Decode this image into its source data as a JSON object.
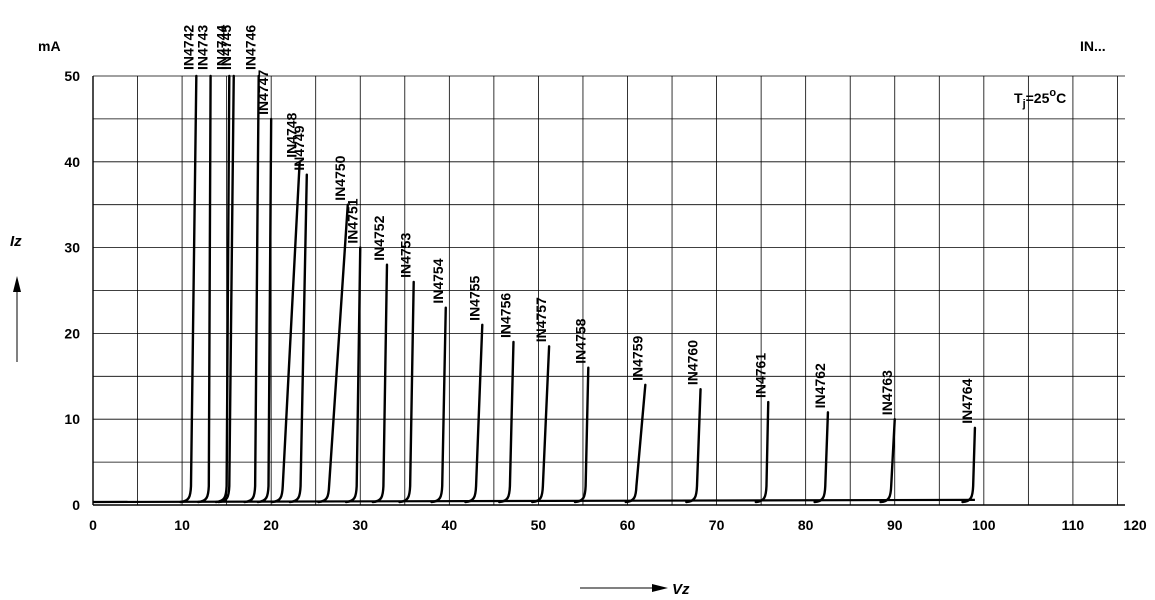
{
  "chart_data": {
    "type": "line",
    "title": "",
    "series_prefix": "IN...",
    "condition": {
      "symbol": "T",
      "subscript": "j",
      "text": "=25",
      "degree": "o",
      "unit": "C"
    },
    "y_unit": "mA",
    "xlabel": "Vz",
    "ylabel": "Iz",
    "xlim": [
      0,
      120
    ],
    "ylim": [
      0,
      50
    ],
    "x_ticks": [
      0,
      10,
      20,
      30,
      40,
      50,
      60,
      70,
      80,
      90,
      100,
      110,
      120
    ],
    "y_ticks": [
      0,
      10,
      20,
      30,
      40,
      50
    ],
    "grid": true,
    "series": [
      {
        "name": "IN4742",
        "knee_v": 11.0,
        "top_v": 11.6,
        "top_i": 50
      },
      {
        "name": "IN4743",
        "knee_v": 13.0,
        "top_v": 13.2,
        "top_i": 50
      },
      {
        "name": "IN4744",
        "knee_v": 15.0,
        "top_v": 15.3,
        "top_i": 50
      },
      {
        "name": "IN4745",
        "knee_v": 15.3,
        "top_v": 15.8,
        "top_i": 50
      },
      {
        "name": "IN4746",
        "knee_v": 18.2,
        "top_v": 18.6,
        "top_i": 50
      },
      {
        "name": "IN4747",
        "knee_v": 19.7,
        "top_v": 20.0,
        "top_i": 45
      },
      {
        "name": "IN4748",
        "knee_v": 21.3,
        "top_v": 23.2,
        "top_i": 40
      },
      {
        "name": "IN4749",
        "knee_v": 23.3,
        "top_v": 24.0,
        "top_i": 38.5
      },
      {
        "name": "IN4750",
        "knee_v": 26.5,
        "top_v": 28.6,
        "top_i": 35
      },
      {
        "name": "IN4751",
        "knee_v": 29.6,
        "top_v": 30.0,
        "top_i": 30
      },
      {
        "name": "IN4752",
        "knee_v": 32.6,
        "top_v": 33.0,
        "top_i": 28
      },
      {
        "name": "IN4753",
        "knee_v": 35.6,
        "top_v": 36.0,
        "top_i": 26
      },
      {
        "name": "IN4754",
        "knee_v": 39.2,
        "top_v": 39.6,
        "top_i": 23
      },
      {
        "name": "IN4755",
        "knee_v": 43.0,
        "top_v": 43.7,
        "top_i": 21
      },
      {
        "name": "IN4756",
        "knee_v": 46.8,
        "top_v": 47.2,
        "top_i": 19
      },
      {
        "name": "IN4757",
        "knee_v": 50.5,
        "top_v": 51.2,
        "top_i": 18.5
      },
      {
        "name": "IN4758",
        "knee_v": 55.3,
        "top_v": 55.6,
        "top_i": 16
      },
      {
        "name": "IN4759",
        "knee_v": 61.0,
        "top_v": 62.0,
        "top_i": 14
      },
      {
        "name": "IN4760",
        "knee_v": 67.8,
        "top_v": 68.2,
        "top_i": 13.5
      },
      {
        "name": "IN4761",
        "knee_v": 75.6,
        "top_v": 75.8,
        "top_i": 12
      },
      {
        "name": "IN4762",
        "knee_v": 82.2,
        "top_v": 82.5,
        "top_i": 10.8
      },
      {
        "name": "IN4763",
        "knee_v": 89.6,
        "top_v": 90.0,
        "top_i": 10
      },
      {
        "name": "IN4764",
        "knee_v": 98.8,
        "top_v": 99.0,
        "top_i": 9
      }
    ]
  }
}
